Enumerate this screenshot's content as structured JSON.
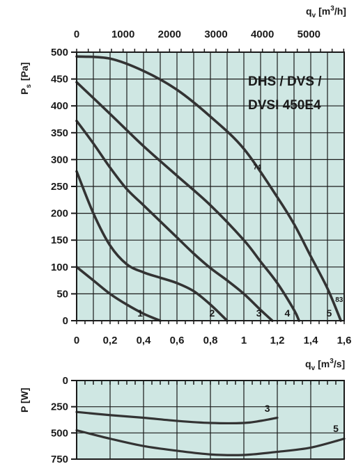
{
  "colors": {
    "plot_bg": "#cfe7e3",
    "grid": "#1a1a1a",
    "curve": "#333333",
    "text": "#1a1a1a"
  },
  "chart_data": [
    {
      "type": "line",
      "model_label": [
        "DHS / DVS /",
        "DVSI 450E4"
      ],
      "xlabel": "qv [m3/s]",
      "xlabel_parts": {
        "main": "q",
        "sub": "v",
        "unit_pre": "[m",
        "unit_sup": "3",
        "unit_post": "/s]"
      },
      "x2label": "qv [m3/h]",
      "x2label_parts": {
        "main": "q",
        "sub": "v",
        "unit_pre": "[m",
        "unit_sup": "3",
        "unit_post": "/h]"
      },
      "ylabel": "Ps [Pa]",
      "ylabel_parts": {
        "main": "P",
        "sub": "s",
        "unit": "[Pa]"
      },
      "xlim": [
        0,
        1.6
      ],
      "ylim": [
        0,
        500
      ],
      "x_ticks": [
        0,
        0.2,
        0.4,
        0.6,
        0.8,
        1,
        1.2,
        1.4,
        1.6
      ],
      "x_tick_labels": [
        "0",
        "0,2",
        "0,4",
        "0,6",
        "0,8",
        "1",
        "1,2",
        "1,4",
        "1,6"
      ],
      "x2_ticks_m3h": [
        0,
        1000,
        2000,
        3000,
        4000,
        5000
      ],
      "x2_tick_labels": [
        "0",
        "1000",
        "2000",
        "3000",
        "4000",
        "5000"
      ],
      "y_ticks": [
        0,
        50,
        100,
        150,
        200,
        250,
        300,
        350,
        400,
        450,
        500
      ],
      "y_tick_labels": [
        "0",
        "50",
        "100",
        "150",
        "200",
        "250",
        "300",
        "350",
        "400",
        "450",
        "500"
      ],
      "grid": true,
      "series": [
        {
          "name": "1",
          "x": [
            0,
            0.1,
            0.2,
            0.3,
            0.4,
            0.5
          ],
          "y": [
            100,
            75,
            50,
            30,
            13,
            0
          ]
        },
        {
          "name": "2",
          "x": [
            0,
            0.1,
            0.2,
            0.3,
            0.4,
            0.5,
            0.6,
            0.7,
            0.8,
            0.9
          ],
          "y": [
            278,
            200,
            140,
            105,
            90,
            80,
            70,
            55,
            30,
            0
          ]
        },
        {
          "name": "3",
          "x": [
            0,
            0.1,
            0.2,
            0.3,
            0.4,
            0.5,
            0.6,
            0.7,
            0.8,
            0.9,
            1.0,
            1.1,
            1.17
          ],
          "y": [
            372,
            330,
            285,
            245,
            215,
            185,
            155,
            125,
            98,
            75,
            50,
            20,
            0
          ]
        },
        {
          "name": "4",
          "x": [
            0,
            0.2,
            0.4,
            0.6,
            0.8,
            1.0,
            1.1,
            1.2,
            1.3,
            1.33
          ],
          "y": [
            444,
            385,
            325,
            270,
            215,
            150,
            110,
            70,
            20,
            0
          ]
        },
        {
          "name": "5",
          "x": [
            0,
            0.2,
            0.4,
            0.6,
            0.8,
            1.0,
            1.2,
            1.3,
            1.4,
            1.5,
            1.58
          ],
          "y": [
            492,
            488,
            465,
            430,
            380,
            320,
            230,
            180,
            120,
            60,
            0
          ]
        }
      ],
      "curve_labels": [
        {
          "text": "1",
          "x": 0.38,
          "y": 8
        },
        {
          "text": "2",
          "x": 0.81,
          "y": 8
        },
        {
          "text": "3",
          "x": 1.09,
          "y": 8
        },
        {
          "text": "4",
          "x": 1.26,
          "y": 8
        },
        {
          "text": "5",
          "x": 1.51,
          "y": 8
        }
      ],
      "efficiency_labels": [
        {
          "text": "74",
          "x": 1.08,
          "y": 282
        },
        {
          "text": "83",
          "x": 1.57,
          "y": 35
        }
      ]
    },
    {
      "type": "line",
      "ylabel": "P [W]",
      "ylim": [
        0,
        750
      ],
      "y_inverted": true,
      "y_ticks": [
        0,
        250,
        500,
        750
      ],
      "y_tick_labels": [
        "0",
        "250",
        "500",
        "750"
      ],
      "xlim": [
        0,
        1.6
      ],
      "grid": true,
      "series": [
        {
          "name": "3",
          "x": [
            0,
            0.2,
            0.4,
            0.6,
            0.8,
            1.0,
            1.1,
            1.2
          ],
          "y": [
            300,
            330,
            355,
            385,
            405,
            405,
            385,
            355
          ]
        },
        {
          "name": "5",
          "x": [
            0,
            0.2,
            0.4,
            0.6,
            0.8,
            1.0,
            1.2,
            1.4,
            1.6
          ],
          "y": [
            475,
            555,
            625,
            670,
            705,
            710,
            680,
            640,
            555
          ]
        }
      ],
      "curve_labels": [
        {
          "text": "3",
          "x": 1.14,
          "y": 300
        },
        {
          "text": "5",
          "x": 1.55,
          "y": 490
        }
      ]
    }
  ]
}
